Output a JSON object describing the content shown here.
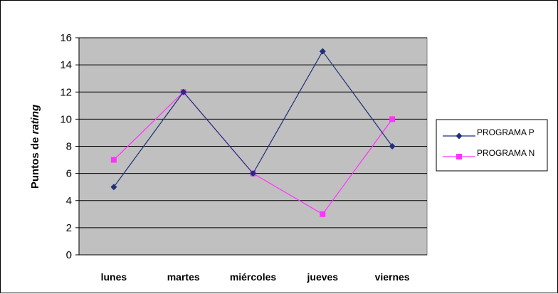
{
  "chart_data": {
    "type": "line",
    "title": "",
    "xlabel": "",
    "ylabel": "Puntos de rating",
    "ylabel_parts": {
      "plain": "Puntos de ",
      "italic": "rating"
    },
    "categories": [
      "lunes",
      "martes",
      "miércoles",
      "jueves",
      "viernes"
    ],
    "series": [
      {
        "name": "PROGRAMA P",
        "values": [
          5,
          12,
          6,
          15,
          8
        ],
        "color": "#1f2f7a",
        "marker": "diamond"
      },
      {
        "name": "PROGRAMA N",
        "values": [
          7,
          12,
          6,
          3,
          10
        ],
        "color": "#ff33ff",
        "marker": "square"
      }
    ],
    "ylim": [
      0,
      16
    ],
    "yticks": [
      0,
      2,
      4,
      6,
      8,
      10,
      12,
      14,
      16
    ],
    "grid": true,
    "legend_position": "right"
  }
}
